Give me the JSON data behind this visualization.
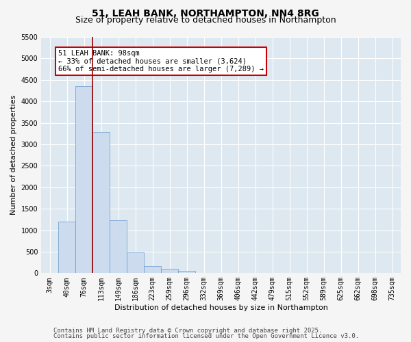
{
  "title1": "51, LEAH BANK, NORTHAMPTON, NN4 8RG",
  "title2": "Size of property relative to detached houses in Northampton",
  "xlabel": "Distribution of detached houses by size in Northampton",
  "ylabel": "Number of detached properties",
  "bar_color": "#ccdcee",
  "bar_edge_color": "#6699cc",
  "bg_color": "#dde8f0",
  "grid_color": "#ffffff",
  "fig_bg_color": "#f5f5f5",
  "categories": [
    "3sqm",
    "40sqm",
    "76sqm",
    "113sqm",
    "149sqm",
    "186sqm",
    "223sqm",
    "259sqm",
    "296sqm",
    "332sqm",
    "369sqm",
    "406sqm",
    "442sqm",
    "479sqm",
    "515sqm",
    "552sqm",
    "589sqm",
    "625sqm",
    "662sqm",
    "698sqm",
    "735sqm"
  ],
  "values": [
    0,
    1200,
    4350,
    3280,
    1230,
    480,
    170,
    100,
    55,
    0,
    0,
    0,
    0,
    0,
    0,
    0,
    0,
    0,
    0,
    0,
    0
  ],
  "ylim": [
    0,
    5500
  ],
  "yticks": [
    0,
    500,
    1000,
    1500,
    2000,
    2500,
    3000,
    3500,
    4000,
    4500,
    5000,
    5500
  ],
  "vline_index": 2.5,
  "vline_color": "#990000",
  "annotation_text": "51 LEAH BANK: 98sqm\n← 33% of detached houses are smaller (3,624)\n66% of semi-detached houses are larger (7,289) →",
  "annotation_box_color": "#cc0000",
  "footer1": "Contains HM Land Registry data © Crown copyright and database right 2025.",
  "footer2": "Contains public sector information licensed under the Open Government Licence v3.0.",
  "title_fontsize": 10,
  "subtitle_fontsize": 9,
  "axis_fontsize": 8,
  "tick_fontsize": 7,
  "footer_fontsize": 6.5,
  "annot_fontsize": 7.5
}
